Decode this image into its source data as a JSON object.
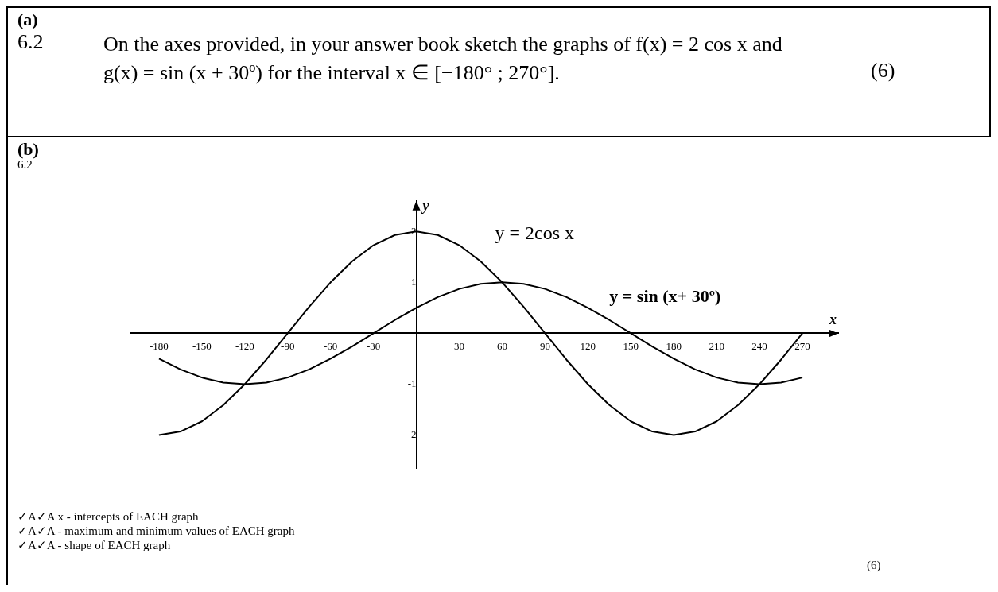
{
  "chart_data": {
    "type": "line",
    "xlabel": "x",
    "ylabel": "y",
    "x": [
      -180,
      -165,
      -150,
      -135,
      -120,
      -105,
      -90,
      -75,
      -60,
      -45,
      -30,
      -15,
      0,
      15,
      30,
      45,
      60,
      75,
      90,
      105,
      120,
      135,
      150,
      165,
      180,
      195,
      210,
      225,
      240,
      255,
      270
    ],
    "series": [
      {
        "name": "y = 2cos x",
        "color": "#000000",
        "values": [
          -2,
          -1.93,
          -1.73,
          -1.41,
          -1,
          -0.52,
          0,
          0.52,
          1,
          1.41,
          1.73,
          1.93,
          2,
          1.93,
          1.73,
          1.41,
          1,
          0.52,
          0,
          -0.52,
          -1,
          -1.41,
          -1.73,
          -1.93,
          -2,
          -1.93,
          -1.73,
          -1.41,
          -1,
          -0.52,
          0
        ]
      },
      {
        "name": "y = sin (x+ 30º)",
        "color": "#000000",
        "values": [
          -0.5,
          -0.71,
          -0.87,
          -0.97,
          -1,
          -0.97,
          -0.87,
          -0.71,
          -0.5,
          -0.26,
          0,
          0.26,
          0.5,
          0.71,
          0.87,
          0.97,
          1,
          0.97,
          0.87,
          0.71,
          0.5,
          0.26,
          0,
          -0.26,
          -0.5,
          -0.71,
          -0.87,
          -0.97,
          -1,
          -0.97,
          -0.87
        ]
      }
    ],
    "xlim": [
      -200,
      295
    ],
    "ylim": [
      -2.65,
      2.6
    ],
    "xticks": [
      -180,
      -150,
      -120,
      -90,
      -60,
      -30,
      30,
      60,
      90,
      120,
      150,
      180,
      210,
      240,
      270
    ],
    "yticks": [
      -2,
      -1,
      1,
      2
    ],
    "grid": false,
    "legend": false,
    "marker": "none",
    "line_style": "solid",
    "annotations": [
      "(a)",
      "6.2",
      "On the axes provided, in your answer book sketch the graphs of f(x) = 2 cos x and g(x) = sin (x + 30º) for the interval x ∈ [−180° ; 270°].",
      "(6)",
      "(b)",
      "6.2",
      "✓A✓A x - intercepts of EACH graph",
      "✓A✓A - maximum and minimum values of EACH graph",
      "✓A✓A - shape of EACH graph",
      "(6)"
    ]
  }
}
